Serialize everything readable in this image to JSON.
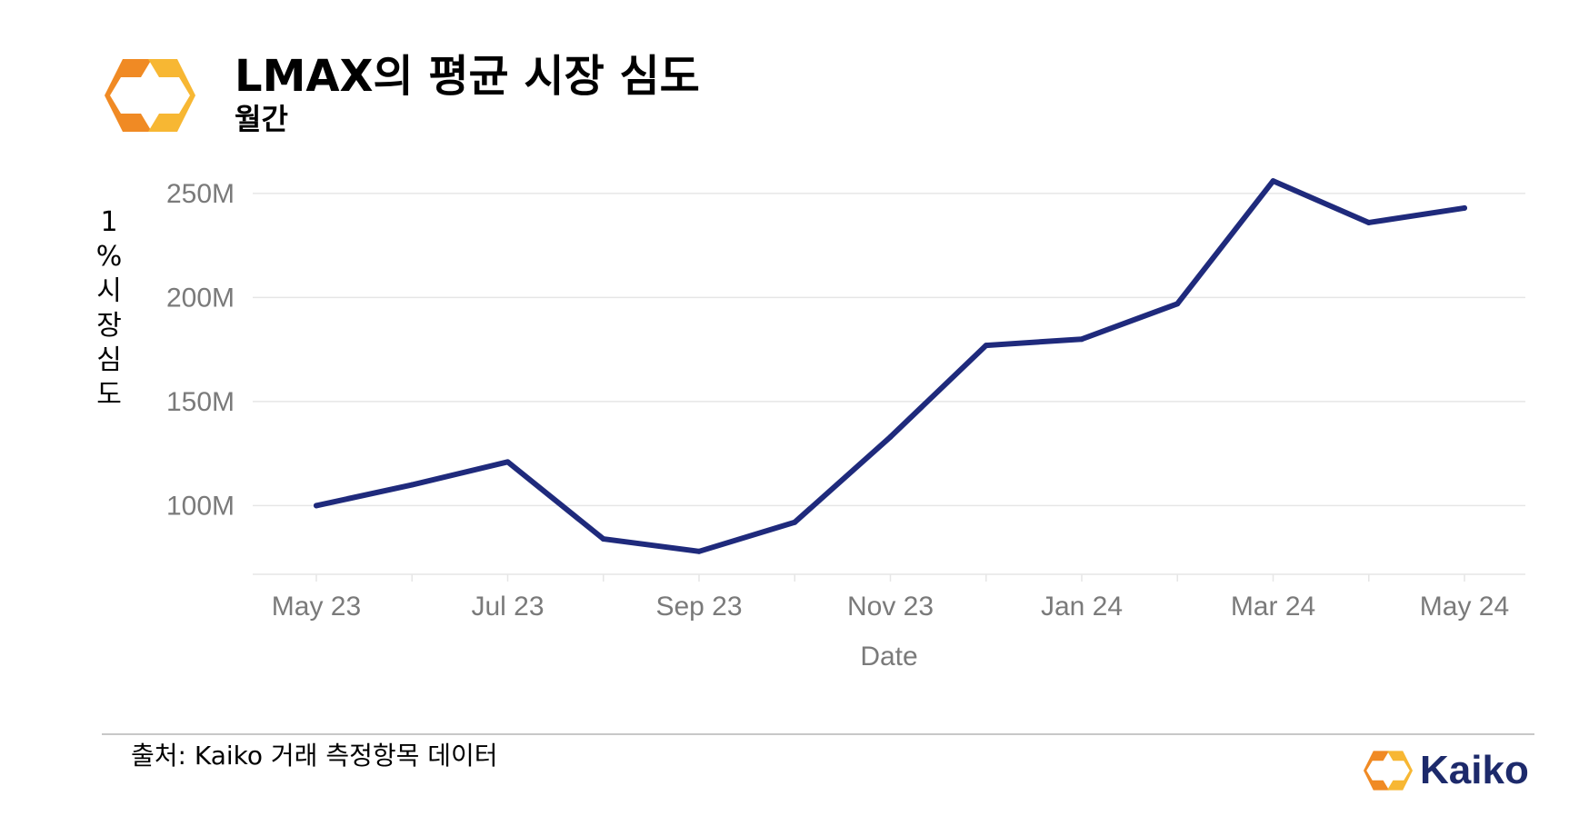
{
  "header": {
    "title": "LMAX의 평균 시장 심도",
    "subtitle": "월간"
  },
  "footer": {
    "source": "출처: Kaiko 거래 측정항목 데이터",
    "brand": "Kaiko"
  },
  "colors": {
    "line": "#1f2a7c",
    "grid": "#e6e6e6",
    "tick_text": "#7a7a7a",
    "logo_orange": "#f08a24",
    "logo_yellow": "#f7b733",
    "brand_text": "#1d2a6b"
  },
  "chart_data": {
    "type": "line",
    "title": "LMAX의 평균 시장 심도",
    "subtitle": "월간",
    "xlabel": "Date",
    "ylabel": "1%시장심도",
    "x": [
      "May 23",
      "Jun 23",
      "Jul 23",
      "Aug 23",
      "Sep 23",
      "Oct 23",
      "Nov 23",
      "Dec 23",
      "Jan 24",
      "Feb 24",
      "Mar 24",
      "Apr 24",
      "May 24"
    ],
    "x_ticks": [
      "May 23",
      "Jul 23",
      "Sep 23",
      "Nov 23",
      "Jan 24",
      "Mar 24",
      "May 24"
    ],
    "series": [
      {
        "values": [
          100,
          110,
          121,
          84,
          78,
          92,
          133,
          177,
          180,
          197,
          256,
          236,
          243
        ]
      }
    ],
    "y_ticks": [
      100,
      150,
      200,
      250
    ],
    "y_tick_labels": [
      "100M",
      "150M",
      "200M",
      "250M"
    ],
    "y_unit": "M",
    "ylim": [
      67,
      260
    ],
    "grid": true,
    "legend": "none"
  }
}
